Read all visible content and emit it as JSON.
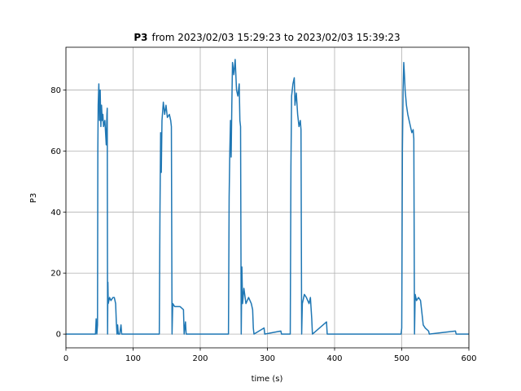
{
  "chart_data": {
    "type": "line",
    "title_bold": "P3",
    "title": "from 2023/02/03 15:29:23 to 2023/02/03 15:39:23",
    "xlabel": "time (s)",
    "ylabel": "P3",
    "xlim": [
      0,
      600
    ],
    "xticks": [
      0,
      100,
      200,
      300,
      400,
      500,
      600
    ],
    "ylim": [
      -4.5,
      94
    ],
    "yticks": [
      0,
      20,
      40,
      60,
      80
    ],
    "grid": true,
    "series": [
      {
        "color": "#1f77b4",
        "x": [
          0,
          44,
          45,
          46,
          47,
          47.5,
          48,
          49,
          50,
          51,
          52,
          53,
          54,
          55,
          56,
          58,
          60,
          61,
          61.5,
          62,
          62.5,
          63,
          65,
          67,
          70,
          72,
          74,
          75,
          76,
          77,
          78,
          80,
          82,
          83,
          139,
          140,
          141,
          142,
          143,
          145,
          147,
          149,
          151,
          154,
          156,
          157,
          158,
          159,
          162,
          170,
          175,
          176,
          178,
          179,
          242,
          243,
          244,
          245,
          246,
          247,
          248,
          250,
          252,
          254,
          256,
          258,
          259,
          260,
          261,
          262,
          263,
          265,
          268,
          272,
          276,
          278,
          279,
          280,
          295,
          296,
          320,
          321,
          334,
          335,
          336,
          338,
          340,
          341,
          343,
          345,
          347,
          349,
          350,
          351,
          352,
          355,
          358,
          362,
          364,
          366,
          367,
          388,
          389,
          499,
          500,
          501,
          502,
          503,
          504,
          505,
          507,
          509,
          511,
          513,
          515,
          517,
          518,
          519,
          520,
          522,
          525,
          528,
          530,
          532,
          535,
          540,
          541,
          580,
          581,
          600
        ],
        "values": [
          0,
          0,
          5,
          0,
          3,
          60,
          75,
          82,
          70,
          80,
          68,
          75,
          70,
          72,
          68,
          70,
          62,
          72,
          74,
          0,
          17,
          10,
          12,
          11,
          12,
          12,
          10,
          4,
          0,
          3,
          0,
          0,
          3,
          0,
          0,
          40,
          66,
          53,
          70,
          76,
          72,
          75,
          71,
          72,
          70,
          68,
          0,
          10,
          9,
          9,
          8,
          0,
          4,
          0,
          0,
          45,
          60,
          70,
          58,
          75,
          89,
          85,
          90,
          80,
          78,
          82,
          70,
          68,
          0,
          22,
          10,
          15,
          10,
          12,
          10,
          8,
          2,
          0,
          2,
          0,
          1,
          0,
          0,
          55,
          78,
          82,
          84,
          75,
          79,
          72,
          68,
          70,
          67,
          0,
          10,
          13,
          12,
          10,
          12,
          5,
          0,
          4,
          0,
          0,
          2,
          60,
          80,
          89,
          85,
          80,
          75,
          72,
          70,
          68,
          66,
          67,
          64,
          0,
          13,
          11,
          12,
          11,
          7,
          3,
          2,
          1,
          0,
          1,
          0,
          0
        ]
      }
    ]
  }
}
